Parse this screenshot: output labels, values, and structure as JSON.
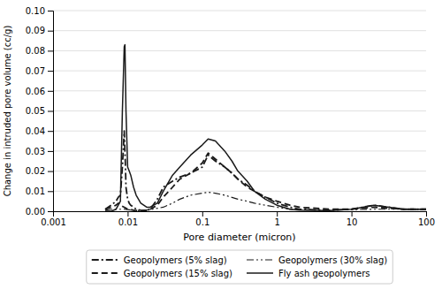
{
  "chart_data": {
    "type": "line",
    "xlabel": "Pore diameter (micron)",
    "ylabel": "Change in intruded pore volume (cc/g)",
    "log": "x",
    "xlim": [
      0.001,
      100
    ],
    "xticks": [
      0.001,
      0.01,
      0.1,
      1,
      10,
      100
    ],
    "ylim": [
      0,
      0.1
    ],
    "yticks": [
      {
        "value": 0.0,
        "label": "0.00"
      },
      {
        "value": 0.01,
        "label": "0.01"
      },
      {
        "value": 0.02,
        "label": "0.02"
      },
      {
        "value": 0.03,
        "label": "0.03"
      },
      {
        "value": 0.04,
        "label": "0.04"
      },
      {
        "value": 0.05,
        "label": "0.05"
      },
      {
        "value": 0.06,
        "label": "0.06"
      },
      {
        "value": 0.07,
        "label": "0.07"
      },
      {
        "value": 0.08,
        "label": "0.08"
      },
      {
        "value": 0.09,
        "label": "0.09"
      },
      {
        "value": 0.1,
        "label": "0.10"
      }
    ],
    "grid": "y",
    "legend": "bottom",
    "series": [
      {
        "name": "Geopolymers (5% slag)",
        "color": "#1a1a1a",
        "line_style": "dashdot",
        "x": [
          0.005,
          0.006,
          0.007,
          0.0075,
          0.008,
          0.0085,
          0.009,
          0.0093,
          0.0095,
          0.01,
          0.0105,
          0.011,
          0.012,
          0.013,
          0.015,
          0.018,
          0.02,
          0.025,
          0.03,
          0.04,
          0.05,
          0.07,
          0.1,
          0.12,
          0.15,
          0.2,
          0.25,
          0.3,
          0.4,
          0.5,
          0.7,
          1.0,
          1.5,
          2.0,
          5.0,
          10.0,
          20.0,
          50.0,
          100.0
        ],
        "values": [
          0.001,
          0.003,
          0.005,
          0.007,
          0.008,
          0.022,
          0.04,
          0.025,
          0.012,
          0.006,
          0.004,
          0.003,
          0.002,
          0.001,
          0.0005,
          0.0003,
          0.001,
          0.006,
          0.012,
          0.015,
          0.017,
          0.019,
          0.022,
          0.028,
          0.025,
          0.022,
          0.019,
          0.016,
          0.013,
          0.01,
          0.007,
          0.004,
          0.002,
          0.001,
          0.0005,
          0.001,
          0.003,
          0.001,
          0.001
        ]
      },
      {
        "name": "Geopolymers (15% slag)",
        "color": "#1a1a1a",
        "line_style": "dashed",
        "x": [
          0.005,
          0.006,
          0.007,
          0.0075,
          0.008,
          0.009,
          0.01,
          0.011,
          0.012,
          0.015,
          0.018,
          0.02,
          0.025,
          0.03,
          0.04,
          0.05,
          0.07,
          0.1,
          0.12,
          0.15,
          0.2,
          0.25,
          0.3,
          0.4,
          0.5,
          0.7,
          1.0,
          1.5,
          2.0,
          5.0,
          10.0,
          20.0,
          50.0,
          100.0
        ],
        "values": [
          0.001,
          0.002,
          0.003,
          0.004,
          0.003,
          0.002,
          0.001,
          0.0008,
          0.0005,
          0.0003,
          0.0002,
          0.001,
          0.003,
          0.007,
          0.012,
          0.016,
          0.019,
          0.024,
          0.029,
          0.026,
          0.022,
          0.019,
          0.016,
          0.012,
          0.01,
          0.007,
          0.005,
          0.003,
          0.002,
          0.001,
          0.001,
          0.002,
          0.001,
          0.001
        ]
      },
      {
        "name": "Geopolymers (30% slag)",
        "color": "#1a1a1a",
        "line_style": "dashdotdot",
        "x": [
          0.005,
          0.006,
          0.007,
          0.008,
          0.009,
          0.01,
          0.011,
          0.012,
          0.015,
          0.02,
          0.03,
          0.04,
          0.05,
          0.07,
          0.1,
          0.12,
          0.15,
          0.2,
          0.3,
          0.4,
          0.5,
          0.7,
          1.0,
          1.5,
          2.0,
          5.0,
          10.0,
          20.0,
          50.0,
          100.0
        ],
        "values": [
          0.0005,
          0.001,
          0.001,
          0.001,
          0.001,
          0.0008,
          0.0006,
          0.0004,
          0.0003,
          0.0008,
          0.002,
          0.004,
          0.006,
          0.008,
          0.009,
          0.0095,
          0.009,
          0.008,
          0.006,
          0.005,
          0.004,
          0.003,
          0.002,
          0.001,
          0.0008,
          0.0005,
          0.0008,
          0.001,
          0.001,
          0.001
        ]
      },
      {
        "name": "Fly ash geopolymers",
        "color": "#1a1a1a",
        "line_style": "solid",
        "x": [
          0.005,
          0.006,
          0.007,
          0.008,
          0.0085,
          0.009,
          0.0092,
          0.0095,
          0.01,
          0.0105,
          0.011,
          0.012,
          0.013,
          0.015,
          0.018,
          0.02,
          0.025,
          0.03,
          0.04,
          0.05,
          0.07,
          0.1,
          0.12,
          0.15,
          0.2,
          0.25,
          0.3,
          0.4,
          0.5,
          0.7,
          1.0,
          1.5,
          2.0,
          5.0,
          10.0,
          20.0,
          50.0,
          100.0
        ],
        "values": [
          0.0,
          0.0,
          0.001,
          0.005,
          0.05,
          0.082,
          0.083,
          0.05,
          0.022,
          0.02,
          0.018,
          0.012,
          0.008,
          0.004,
          0.002,
          0.002,
          0.004,
          0.01,
          0.018,
          0.022,
          0.028,
          0.033,
          0.036,
          0.035,
          0.03,
          0.025,
          0.02,
          0.015,
          0.01,
          0.006,
          0.003,
          0.001,
          0.0005,
          0.0003,
          0.001,
          0.003,
          0.001,
          0.001
        ]
      }
    ]
  }
}
